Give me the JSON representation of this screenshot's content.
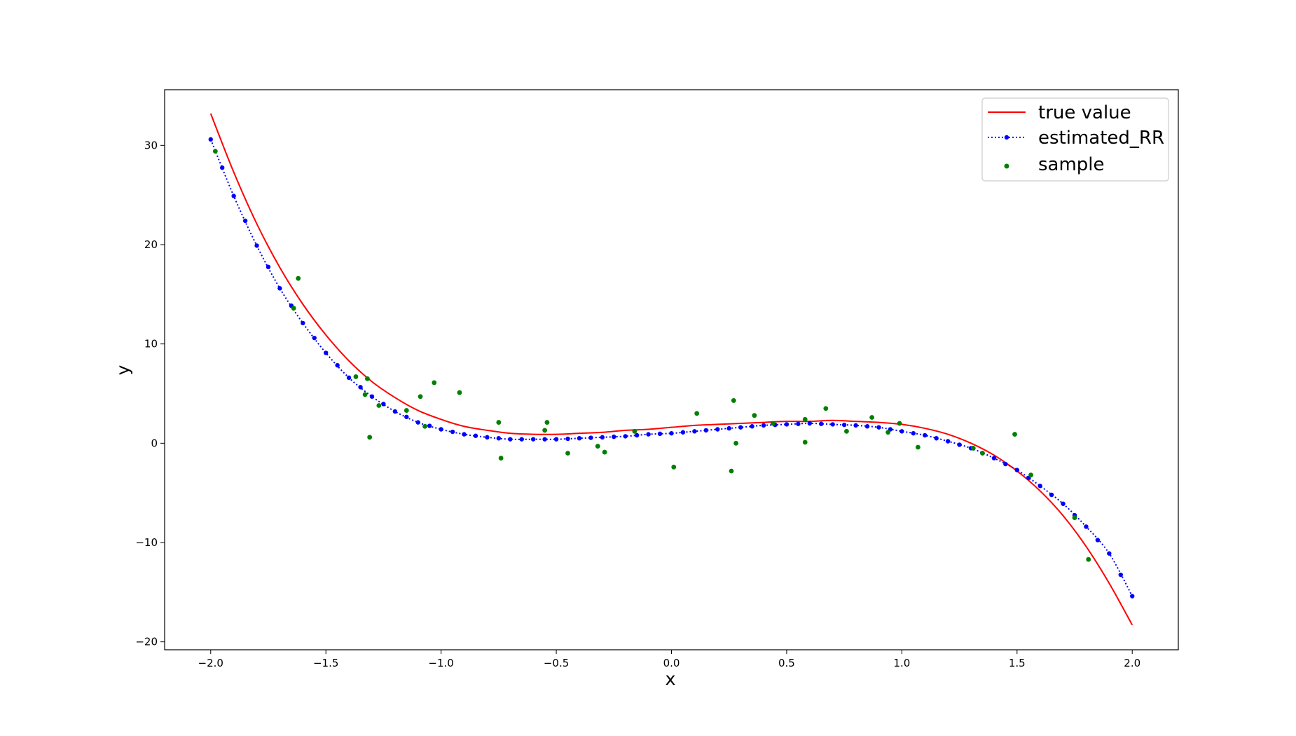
{
  "chart_data": {
    "type": "line",
    "xlabel": "x",
    "ylabel": "y",
    "xlim": [
      -2.2,
      2.2
    ],
    "ylim": [
      -20.8,
      35.6
    ],
    "xticks": [
      -2.0,
      -1.5,
      -1.0,
      -0.5,
      0.0,
      0.5,
      1.0,
      1.5,
      2.0
    ],
    "xtick_labels": [
      "−2.0",
      "−1.5",
      "−1.0",
      "−0.5",
      "0.0",
      "0.5",
      "1.0",
      "1.5",
      "2.0"
    ],
    "yticks": [
      -20,
      -10,
      0,
      10,
      20,
      30
    ],
    "ytick_labels": [
      "−20",
      "−10",
      "0",
      "10",
      "20",
      "30"
    ],
    "grid": false,
    "legend_position": "top-right",
    "series": [
      {
        "name": "true value",
        "kind": "line",
        "color": "#ff0000",
        "x": [
          -2.0,
          -1.9,
          -1.8,
          -1.7,
          -1.6,
          -1.5,
          -1.4,
          -1.3,
          -1.2,
          -1.1,
          -1.0,
          -0.9,
          -0.8,
          -0.7,
          -0.6,
          -0.5,
          -0.4,
          -0.3,
          -0.2,
          -0.1,
          0.0,
          0.1,
          0.2,
          0.3,
          0.4,
          0.5,
          0.6,
          0.7,
          0.8,
          0.9,
          1.0,
          1.1,
          1.2,
          1.3,
          1.4,
          1.5,
          1.6,
          1.7,
          1.8,
          1.9,
          2.0
        ],
        "y": [
          33.2,
          27.3,
          22.1,
          17.7,
          14.0,
          10.9,
          8.3,
          6.2,
          4.6,
          3.3,
          2.4,
          1.7,
          1.3,
          1.0,
          0.9,
          0.9,
          1.0,
          1.1,
          1.3,
          1.4,
          1.6,
          1.8,
          1.9,
          2.0,
          2.1,
          2.2,
          2.2,
          2.3,
          2.2,
          2.1,
          1.9,
          1.5,
          0.9,
          0.0,
          -1.2,
          -2.8,
          -4.8,
          -7.3,
          -10.4,
          -14.1,
          -18.3
        ]
      },
      {
        "name": "estimated_RR",
        "kind": "dotted-line-markers",
        "color": "#0000ff",
        "x": [
          -2.0,
          -1.9,
          -1.8,
          -1.7,
          -1.6,
          -1.5,
          -1.4,
          -1.3,
          -1.2,
          -1.1,
          -1.0,
          -0.9,
          -0.8,
          -0.7,
          -0.6,
          -0.5,
          -0.4,
          -0.3,
          -0.2,
          -0.1,
          0.0,
          0.1,
          0.2,
          0.3,
          0.4,
          0.5,
          0.6,
          0.7,
          0.8,
          0.9,
          1.0,
          1.1,
          1.2,
          1.3,
          1.4,
          1.5,
          1.6,
          1.7,
          1.8,
          1.9,
          2.0
        ],
        "y": [
          30.6,
          24.9,
          19.9,
          15.6,
          12.1,
          9.1,
          6.6,
          4.7,
          3.2,
          2.1,
          1.4,
          0.9,
          0.6,
          0.4,
          0.4,
          0.4,
          0.5,
          0.6,
          0.7,
          0.9,
          1.0,
          1.2,
          1.4,
          1.6,
          1.8,
          1.9,
          2.0,
          1.9,
          1.8,
          1.6,
          1.2,
          0.8,
          0.2,
          -0.5,
          -1.5,
          -2.7,
          -4.3,
          -6.1,
          -8.4,
          -11.1,
          -15.4
        ]
      },
      {
        "name": "sample",
        "kind": "scatter",
        "color": "#008000",
        "x": [
          -1.98,
          -1.62,
          -1.64,
          -1.37,
          -1.32,
          -1.31,
          -1.33,
          -1.27,
          -1.15,
          -1.09,
          -1.07,
          -1.03,
          -0.92,
          -0.75,
          -0.74,
          -0.55,
          -0.54,
          -0.45,
          -0.32,
          -0.29,
          -0.16,
          0.01,
          0.11,
          0.27,
          0.26,
          0.28,
          0.36,
          0.44,
          0.58,
          0.58,
          0.67,
          0.76,
          0.87,
          0.94,
          0.99,
          1.07,
          1.31,
          1.35,
          1.49,
          1.56,
          1.75,
          1.81
        ],
        "y": [
          29.4,
          16.6,
          13.6,
          6.7,
          6.5,
          0.6,
          4.9,
          3.8,
          3.3,
          4.7,
          1.7,
          6.1,
          5.1,
          2.1,
          -1.5,
          1.3,
          2.1,
          -1.0,
          -0.3,
          -0.9,
          1.2,
          -2.4,
          3.0,
          4.3,
          -2.8,
          0.0,
          2.8,
          2.0,
          2.4,
          0.1,
          3.5,
          1.2,
          2.6,
          1.1,
          2.0,
          -0.4,
          -0.5,
          -1.0,
          0.9,
          -3.2,
          -7.5,
          -11.7
        ]
      }
    ]
  }
}
